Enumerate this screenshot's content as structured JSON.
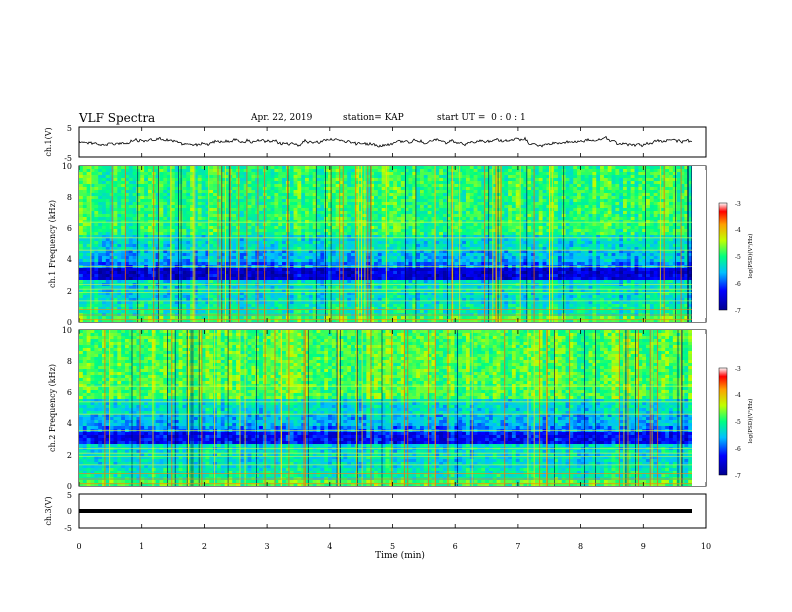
{
  "header": {
    "title": "VLF Spectra",
    "date": "Apr. 22, 2019",
    "station": "station= KAP",
    "start": "start UT =  0 : 0 : 1"
  },
  "chart_data": [
    {
      "type": "line",
      "panel": "top-waveform",
      "ylabel": "ch.1(V)",
      "ylim": [
        -5,
        5
      ],
      "yticks": [
        "5",
        "-5"
      ],
      "xlim": [
        0,
        10
      ],
      "description_only": false,
      "series": [
        {
          "values_range": [
            -2,
            2
          ]
        }
      ]
    },
    {
      "type": "heatmap",
      "panel": "ch1-spectrogram",
      "ylabel": "ch.1  Frequency (kHz)",
      "ylim": [
        0,
        10
      ],
      "yticks": [
        "0",
        "2",
        "4",
        "6",
        "8",
        "10"
      ],
      "xlim": [
        0,
        9.8
      ],
      "colorbar": {
        "label": "log(PSD)(V²/Hz)",
        "range": [
          -7,
          -3
        ],
        "ticks": [
          "-3",
          "-4",
          "-5",
          "-6",
          "-7"
        ]
      }
    },
    {
      "type": "heatmap",
      "panel": "ch2-spectrogram",
      "ylabel": "ch.2  Frequency (kHz)",
      "ylim": [
        0,
        10
      ],
      "yticks": [
        "0",
        "2",
        "4",
        "6",
        "8",
        "10"
      ],
      "xlim": [
        0,
        9.8
      ],
      "colorbar": {
        "label": "log(PSD)(V²/Hz)",
        "range": [
          -7,
          -3
        ],
        "ticks": [
          "-3",
          "-4",
          "-5",
          "-6",
          "-7"
        ]
      }
    },
    {
      "type": "line",
      "panel": "bottom-waveform",
      "ylabel": "ch.3(V)",
      "ylim": [
        -5,
        5
      ],
      "yticks": [
        "5",
        "0",
        "-5"
      ],
      "xlabel": "Time  (min)",
      "xlim": [
        0,
        10
      ],
      "xticks": [
        "0",
        "1",
        "2",
        "3",
        "4",
        "5",
        "6",
        "7",
        "8",
        "9",
        "10"
      ],
      "series": [
        {
          "values": [
            -0.5,
            -0.5
          ]
        }
      ]
    }
  ],
  "colors": {
    "low": "#00008b",
    "mid": "#00ff80",
    "high": "#ff0000"
  }
}
